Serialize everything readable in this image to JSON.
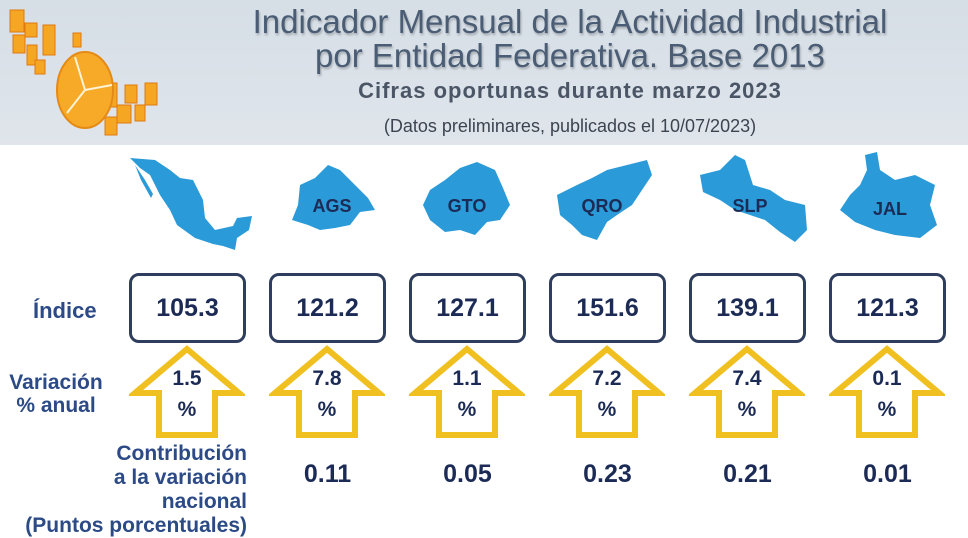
{
  "header": {
    "title_line1": "Indicador Mensual de la Actividad Industrial",
    "title_line2": "por Entidad Federativa. Base 2013",
    "subtitle": "Cifras oportunas durante marzo 2023",
    "note": "(Datos preliminares, publicados el 10/07/2023)"
  },
  "labels": {
    "indice": "Índice",
    "variacion_line1": "Variación",
    "variacion_line2": "% anual",
    "contrib_line1": "Contribución",
    "contrib_line2": "a la variación",
    "contrib_line3": "nacional",
    "contrib_line4": "(Puntos porcentuales)"
  },
  "colors": {
    "map": "#2a9ad8",
    "arrow": "#f0c020",
    "box_border": "#2f3d5e",
    "text": "#1c2b55",
    "label": "#2b4a86"
  },
  "columns": [
    {
      "name": "",
      "indice": "105.3",
      "variacion": "1.5",
      "unit": "%",
      "contribucion": ""
    },
    {
      "name": "AGS",
      "indice": "121.2",
      "variacion": "7.8",
      "unit": "%",
      "contribucion": "0.11"
    },
    {
      "name": "GTO",
      "indice": "127.1",
      "variacion": "1.1",
      "unit": "%",
      "contribucion": "0.05"
    },
    {
      "name": "QRO",
      "indice": "151.6",
      "variacion": "7.2",
      "unit": "%",
      "contribucion": "0.23"
    },
    {
      "name": "SLP",
      "indice": "139.1",
      "variacion": "7.4",
      "unit": "%",
      "contribucion": "0.21"
    },
    {
      "name": "JAL",
      "indice": "121.3",
      "variacion": "0.1",
      "unit": "%",
      "contribucion": "0.01"
    }
  ]
}
